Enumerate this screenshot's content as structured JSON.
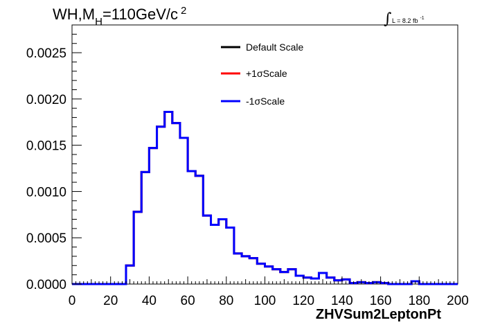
{
  "chart_data": {
    "type": "line",
    "title": "WH,M_H=110GeV/c^2",
    "title_parts": {
      "main": "WH,M",
      "sub": "H",
      "rest": "=110GeV/c",
      "sup": "2"
    },
    "luminosity": {
      "symbol": "∫",
      "text": "L = 8.2 fb",
      "sup": "-1"
    },
    "xlabel": "ZHVSum2LeptonPt",
    "ylabel": "",
    "xlim": [
      0,
      200
    ],
    "ylim": [
      0,
      0.0028
    ],
    "x_ticks": [
      "0",
      "20",
      "40",
      "60",
      "80",
      "100",
      "120",
      "140",
      "160",
      "180",
      "200"
    ],
    "x_tick_values": [
      0,
      20,
      40,
      60,
      80,
      100,
      120,
      140,
      160,
      180,
      200
    ],
    "y_ticks": [
      "0.0000",
      "0.0005",
      "0.0010",
      "0.0015",
      "0.0020",
      "0.0025"
    ],
    "y_tick_values": [
      0,
      0.0005,
      0.001,
      0.0015,
      0.002,
      0.0025
    ],
    "grid": false,
    "legend_position": "top-center",
    "bin_edges": [
      0,
      4,
      8,
      12,
      16,
      20,
      24,
      28,
      32,
      36,
      40,
      44,
      48,
      52,
      56,
      60,
      64,
      68,
      72,
      76,
      80,
      84,
      88,
      92,
      96,
      100,
      104,
      108,
      112,
      116,
      120,
      124,
      128,
      132,
      136,
      140,
      144,
      148,
      152,
      156,
      160,
      164,
      168,
      172,
      176,
      180,
      184,
      188,
      192,
      196,
      200
    ],
    "series": [
      {
        "name": "Default Scale",
        "color": "#000000",
        "values": [
          0,
          0,
          0,
          0,
          0,
          0,
          0,
          0.0002,
          0.00078,
          0.00121,
          0.00147,
          0.0017,
          0.00186,
          0.00174,
          0.00158,
          0.00122,
          0.00117,
          0.00074,
          0.00064,
          0.0007,
          0.00061,
          0.00033,
          0.0003,
          0.00028,
          0.00022,
          0.00019,
          0.00016,
          0.00013,
          0.00016,
          9e-05,
          7e-05,
          6e-05,
          0.00012,
          7e-05,
          4e-05,
          5e-05,
          1e-05,
          2e-05,
          1e-05,
          2e-05,
          1e-05,
          0,
          0,
          0,
          3e-05,
          0,
          0,
          0,
          0,
          0
        ]
      },
      {
        "name": "+1σScale",
        "color": "#ff0000",
        "values": [
          0,
          0,
          0,
          0,
          0,
          0,
          0,
          0.0002,
          0.00078,
          0.00121,
          0.00147,
          0.0017,
          0.00186,
          0.00174,
          0.00158,
          0.00122,
          0.00117,
          0.00074,
          0.00064,
          0.0007,
          0.00061,
          0.00033,
          0.0003,
          0.00028,
          0.00022,
          0.00019,
          0.00016,
          0.00013,
          0.00016,
          9e-05,
          7e-05,
          6e-05,
          0.00012,
          7e-05,
          4e-05,
          5e-05,
          1e-05,
          2e-05,
          1e-05,
          2e-05,
          1e-05,
          0,
          0,
          0,
          3e-05,
          0,
          0,
          0,
          0,
          0
        ]
      },
      {
        "name": "-1σScale",
        "color": "#0000ff",
        "values": [
          0,
          0,
          0,
          0,
          0,
          0,
          0,
          0.0002,
          0.00078,
          0.00121,
          0.00147,
          0.0017,
          0.00186,
          0.00174,
          0.00158,
          0.00122,
          0.00117,
          0.00074,
          0.00064,
          0.0007,
          0.00061,
          0.00033,
          0.0003,
          0.00028,
          0.00022,
          0.00019,
          0.00016,
          0.00013,
          0.00016,
          9e-05,
          7e-05,
          6e-05,
          0.00012,
          7e-05,
          4e-05,
          5e-05,
          1e-05,
          2e-05,
          1e-05,
          2e-05,
          1e-05,
          0,
          0,
          0,
          3e-05,
          0,
          0,
          0,
          0,
          0
        ]
      }
    ]
  }
}
